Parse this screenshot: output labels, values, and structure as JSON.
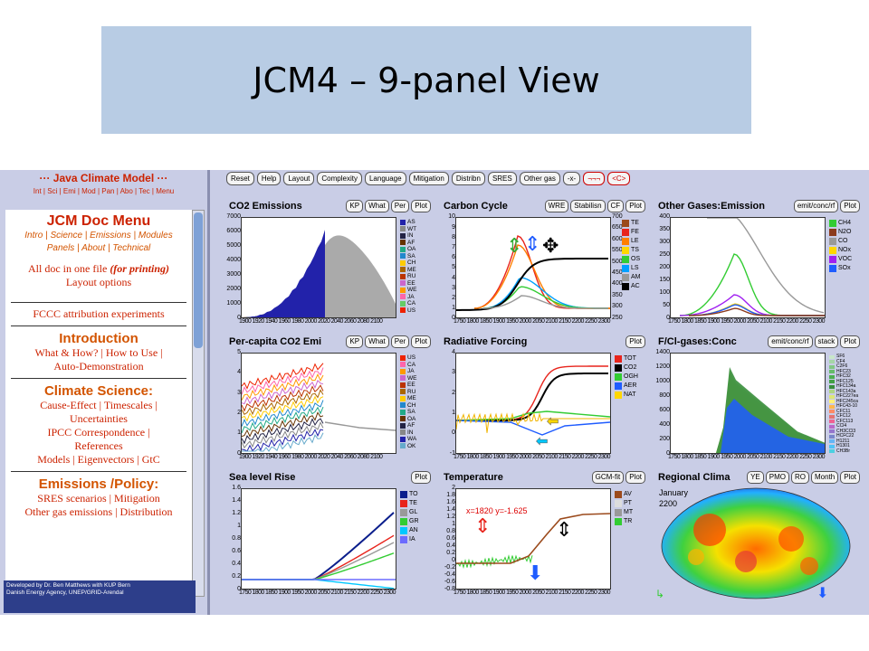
{
  "slide_title": "JCM4 – 9-panel View",
  "nav": {
    "title": "··· Java Climate Model ···",
    "links": [
      "Int",
      "Sci",
      "Emi",
      "Mod",
      "Pan",
      "Abo",
      "Tec",
      "Menu"
    ]
  },
  "doc": {
    "title": "JCM Doc Menu",
    "menu_links_line1": [
      "Intro",
      "Science",
      "Emissions",
      "Modules"
    ],
    "menu_links_line2": [
      "Panels",
      "About",
      "Technical"
    ],
    "all_doc": "All doc in one file",
    "for_printing": "(for printing)",
    "layout_options": "Layout options",
    "fcc": "FCCC attribution experiments",
    "intro_heading": "Introduction",
    "intro_line1": "What & How? | How to Use |",
    "intro_line2": "Auto-Demonstration",
    "science_heading": "Climate Science:",
    "sci_line1": "Cause-Effect | Timescales |",
    "sci_line2": "Uncertainties",
    "sci_line3": "IPCC Correspondence |",
    "sci_line4": "References",
    "sci_line5": "Models | Eigenvectors | GtC",
    "emis_heading": "Emissions /Policy:",
    "emis_line1": "SRES scenarios | Mitigation",
    "emis_line2": "Other gas emissions | Distribution"
  },
  "credits": {
    "line1": "Developed by Dr. Ben Matthews with KUP Bern",
    "line2": "Danish Energy Agency, UNEP/GRID-Arendal"
  },
  "toolbar": [
    "Reset",
    "Help",
    "Layout",
    "Complexity",
    "Language",
    "Mitigation",
    "Distribn",
    "SRES",
    "Other gas",
    "-x-",
    "¬¬¬",
    "<C>"
  ],
  "panels": {
    "co2": {
      "title": "CO2 Emissions",
      "buttons": [
        "KP",
        "What",
        "Per",
        "Plot"
      ],
      "yticks": [
        "7000",
        "6000",
        "5000",
        "4000",
        "3000",
        "2000",
        "1000",
        "0"
      ],
      "xticks": "1900 1920 1940 1960 1980 2000 2020 2040 2060 2080 2100",
      "legend": [
        "AS",
        "WT",
        "IN",
        "AF",
        "OA",
        "SA",
        "CH",
        "ME",
        "RU",
        "EE",
        "WE",
        "JA",
        "CA",
        "US"
      ]
    },
    "carbon": {
      "title": "Carbon Cycle",
      "buttons": [
        "WRE",
        "Stabilisn",
        "CF",
        "Plot"
      ],
      "yticks": [
        "10",
        "9",
        "8",
        "7",
        "6",
        "5",
        "4",
        "3",
        "2",
        "1",
        "0"
      ],
      "yticks2": [
        "700",
        "650",
        "600",
        "550",
        "500",
        "450",
        "400",
        "350",
        "300",
        "250"
      ],
      "xticks": "1750 1800 1850 1900 1950 2000 2050 2100 2150 2200 2250 2300",
      "legend": [
        "TE",
        "FE",
        "LE",
        "TS",
        "OS",
        "LS",
        "AM",
        "AC"
      ]
    },
    "other": {
      "title": "Other Gases:Emission",
      "buttons": [
        "emit/conc/rf",
        "Plot"
      ],
      "yticks": [
        "400",
        "350",
        "300",
        "250",
        "200",
        "150",
        "100",
        "50",
        "0"
      ],
      "xticks": "1750 1800 1850 1900 1950 2000 2050 2100 2150 2200 2250 2300",
      "legend": [
        "CH4",
        "N2O",
        "CO",
        "NOx",
        "VOC",
        "SOx"
      ]
    },
    "percap": {
      "title": "Per-capita CO2 Emi",
      "buttons": [
        "KP",
        "What",
        "Per",
        "Plot"
      ],
      "yticks": [
        "5",
        "4",
        "3",
        "2",
        "1",
        "0"
      ],
      "xticks": "1900 1920 1940 1960 1980 2000 2020 2040 2060 2080 2100",
      "legend": [
        "US",
        "CA",
        "JA",
        "WE",
        "EE",
        "RU",
        "ME",
        "CH",
        "SA",
        "OA",
        "AF",
        "IN",
        "WA",
        "OK"
      ]
    },
    "rf": {
      "title": "Radiative Forcing",
      "buttons": [
        "Plot"
      ],
      "yticks": [
        "4",
        "3",
        "2",
        "1",
        "0",
        "-1"
      ],
      "xticks": "1750 1800 1850 1900 1950 2000 2050 2100 2150 2200 2250 2300",
      "legend": [
        "TOT",
        "CO2",
        "OGH",
        "AER",
        "NAT"
      ]
    },
    "fcl": {
      "title": "F/Cl-gases:Conc",
      "buttons": [
        "emit/conc/rf",
        "stack",
        "Plot"
      ],
      "yticks": [
        "1400",
        "1200",
        "1000",
        "800",
        "600",
        "400",
        "200",
        "0"
      ],
      "xticks": "1750 1800 1850 1900 1950 2000 2050 2100 2150 2200 2250 2300",
      "legend": [
        "SF6",
        "CF4",
        "C2F6",
        "HFC23",
        "HFC32",
        "HFC125",
        "HFC134a",
        "HFC143a",
        "HFC227ea",
        "HFC245ca",
        "HFC43-10",
        "CFC11",
        "CFC12",
        "CFC113",
        "CCl4",
        "CH3CCl3",
        "HCFC22",
        "H1211",
        "H1301",
        "CH3Br"
      ]
    },
    "sea": {
      "title": "Sea level Rise",
      "buttons": [
        "Plot"
      ],
      "yticks": [
        "1.6",
        "1.4",
        "1.2",
        "1",
        "0.8",
        "0.6",
        "0.4",
        "0.2",
        "0"
      ],
      "xticks": "1750 1800 1850 1900 1950 2000 2050 2100 2150 2200 2250 2300",
      "legend": [
        "TO",
        "TE",
        "GL",
        "GR",
        "AN",
        "IA"
      ]
    },
    "temp": {
      "title": "Temperature",
      "buttons": [
        "GCM-fit",
        "Plot"
      ],
      "yticks": [
        "2",
        "1.8",
        "1.6",
        "1.4",
        "1.2",
        "1",
        "0.8",
        "0.6",
        "0.4",
        "0.2",
        "0",
        "-0.2",
        "-0.4",
        "-0.6",
        "-0.8"
      ],
      "xticks": "1750 1800 1850 1900 1950 2000 2050 2100 2150 2200 2250 2300",
      "legend": [
        "AV",
        "PT",
        "MT",
        "TR"
      ],
      "readout": "x=1820 y=-1.625"
    },
    "regional": {
      "title": "Regional Clima",
      "buttons": [
        "YE",
        "PMO",
        "RO",
        "Month",
        "Plot"
      ],
      "month": "January",
      "year": "2200"
    }
  },
  "colors": {
    "red": "#e8241c",
    "brown": "#9b4a1c",
    "orange": "#ff7f00",
    "yellow": "#ffd700",
    "green": "#33cc33",
    "blue": "#1f5cff",
    "navy": "#0a1e8c",
    "gray": "#999999",
    "black": "#000000",
    "cyan": "#00c8ff",
    "purple": "#a020f0"
  }
}
